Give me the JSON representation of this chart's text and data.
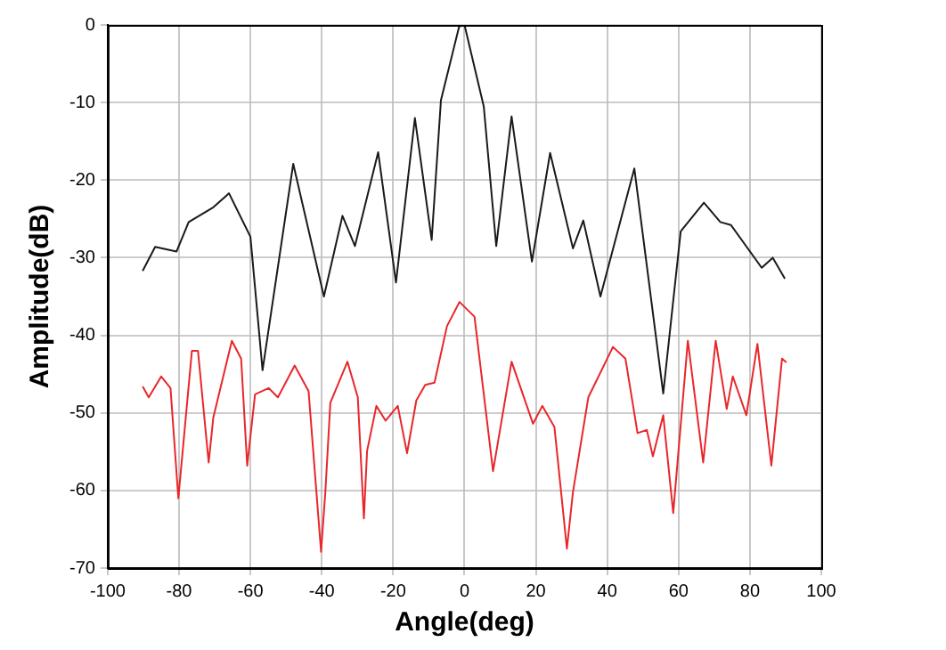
{
  "chart_data": {
    "type": "line",
    "xlabel": "Angle(deg)",
    "ylabel": "Amplitude(dB)",
    "xlim": [
      -100,
      100
    ],
    "xticks": [
      -100,
      -80,
      -60,
      -40,
      -20,
      0,
      20,
      40,
      60,
      80,
      100
    ],
    "ylim": [
      -70,
      0
    ],
    "yticks": [
      -70,
      -60,
      -50,
      -40,
      -30,
      -20,
      -10,
      0
    ],
    "grid": true,
    "legend": false,
    "marker": "none",
    "line_style": "solid",
    "series": [
      {
        "color": "#1a1a1a",
        "x": [
          -90.2,
          -86.7,
          -80.7,
          -77.3,
          -70.4,
          -66,
          -60,
          -56.6,
          -48,
          -39.4,
          -34.2,
          -30.7,
          -24.2,
          -19.2,
          -13.9,
          -9.2,
          -6.6,
          -1.5,
          0,
          5.4,
          8.9,
          13.2,
          18.9,
          24.0,
          30.4,
          33.3,
          38.1,
          47.6,
          55.7,
          60.6,
          67.1,
          71.7,
          74.7,
          83.3,
          86.4,
          89.8
        ],
        "values": [
          -31.7,
          -28.6,
          -29.2,
          -25.4,
          -23.5,
          -21.7,
          -27.3,
          -44.5,
          -17.9,
          -35.0,
          -24.6,
          -28.5,
          -16.4,
          -33.2,
          -12.0,
          -27.7,
          -9.7,
          -0.2,
          0,
          -10.5,
          -28.5,
          -11.8,
          -30.5,
          -16.5,
          -28.8,
          -25.2,
          -35.0,
          -18.5,
          -47.5,
          -26.6,
          -22.9,
          -25.4,
          -25.8,
          -31.3,
          -30.0,
          -32.7
        ]
      },
      {
        "color": "#e8272b",
        "x": [
          -90.2,
          -88.5,
          -85,
          -82.4,
          -80.2,
          -76.4,
          -74.7,
          -71.7,
          -70.4,
          -65.2,
          -62.6,
          -60.9,
          -58.7,
          -54.9,
          -52.3,
          -47.6,
          -43.7,
          -40.2,
          -39.0,
          -37.6,
          -32.8,
          -29.9,
          -28.2,
          -27.3,
          -24.7,
          -22.1,
          -18.7,
          -16.1,
          -13.5,
          -11.0,
          -8.4,
          -4.9,
          -1.4,
          2.8,
          8.0,
          13.2,
          19.2,
          21.8,
          25.2,
          28.7,
          30.4,
          34.7,
          41.6,
          45.1,
          48.5,
          51.1,
          52.8,
          55.7,
          58.5,
          62.6,
          66.9,
          70.4,
          73.5,
          75.2,
          79.0,
          82.1,
          86.0,
          89.0,
          90.2
        ],
        "values": [
          -46.6,
          -48.0,
          -45.3,
          -46.8,
          -61.0,
          -42.0,
          -42.0,
          -56.4,
          -50.6,
          -40.7,
          -43.0,
          -56.8,
          -47.6,
          -46.8,
          -48.0,
          -43.9,
          -47.2,
          -67.9,
          -60.2,
          -48.7,
          -43.4,
          -48.0,
          -63.6,
          -54.9,
          -49.1,
          -51.0,
          -49.1,
          -55.2,
          -48.4,
          -46.4,
          -46.1,
          -38.8,
          -35.7,
          -37.6,
          -57.5,
          -43.4,
          -51.4,
          -49.1,
          -51.8,
          -67.5,
          -60.2,
          -48.0,
          -41.5,
          -43.0,
          -52.6,
          -52.2,
          -55.6,
          -50.3,
          -62.9,
          -40.7,
          -56.4,
          -40.7,
          -49.5,
          -45.3,
          -50.3,
          -41.1,
          -56.8,
          -43.0,
          -43.5
        ]
      }
    ]
  }
}
